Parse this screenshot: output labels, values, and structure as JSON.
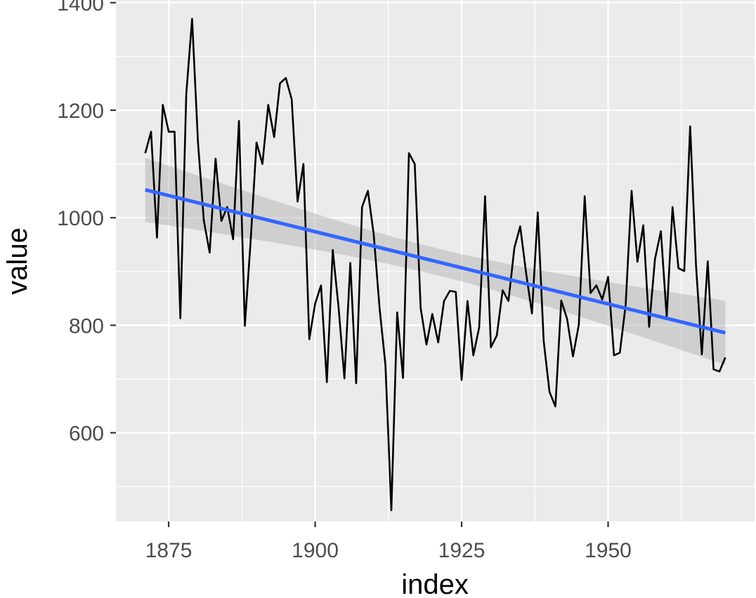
{
  "chart_data": {
    "type": "line",
    "title": "",
    "xlabel": "index",
    "ylabel": "value",
    "xlim": [
      1866,
      1975
    ],
    "ylim": [
      435,
      1405
    ],
    "x_ticks": [
      1875,
      1900,
      1925,
      1950
    ],
    "y_ticks": [
      600,
      800,
      1000,
      1200,
      1400
    ],
    "grid": true,
    "legend": "none",
    "colors": {
      "panel": "#ebebeb",
      "grid": "#ffffff",
      "series": "#000000",
      "trend": "#3366ff",
      "ribbon": "#b3b3b3",
      "tick_text": "#4d4d4d"
    },
    "series": [
      {
        "x": [
          1871,
          1872,
          1873,
          1874,
          1875,
          1876,
          1877,
          1878,
          1879,
          1880,
          1881,
          1882,
          1883,
          1884,
          1885,
          1886,
          1887,
          1888,
          1889,
          1890,
          1891,
          1892,
          1893,
          1894,
          1895,
          1896,
          1897,
          1898,
          1899,
          1900,
          1901,
          1902,
          1903,
          1904,
          1905,
          1906,
          1907,
          1908,
          1909,
          1910,
          1911,
          1912,
          1913,
          1914,
          1915,
          1916,
          1917,
          1918,
          1919,
          1920,
          1921,
          1922,
          1923,
          1924,
          1925,
          1926,
          1927,
          1928,
          1929,
          1930,
          1931,
          1932,
          1933,
          1934,
          1935,
          1936,
          1937,
          1938,
          1939,
          1940,
          1941,
          1942,
          1943,
          1944,
          1945,
          1946,
          1947,
          1948,
          1949,
          1950,
          1951,
          1952,
          1953,
          1954,
          1955,
          1956,
          1957,
          1958,
          1959,
          1960,
          1961,
          1962,
          1963,
          1964,
          1965,
          1966,
          1967,
          1968,
          1969,
          1970
        ],
        "values": [
          1120,
          1160,
          963,
          1210,
          1160,
          1160,
          813,
          1230,
          1370,
          1140,
          995,
          935,
          1110,
          994,
          1020,
          960,
          1180,
          799,
          958,
          1140,
          1100,
          1210,
          1150,
          1250,
          1260,
          1220,
          1030,
          1100,
          774,
          840,
          874,
          694,
          940,
          833,
          701,
          916,
          692,
          1020,
          1050,
          969,
          831,
          726,
          456,
          824,
          702,
          1120,
          1100,
          832,
          764,
          821,
          768,
          845,
          864,
          862,
          698,
          845,
          744,
          796,
          1040,
          759,
          781,
          865,
          845,
          944,
          984,
          897,
          822,
          1010,
          771,
          676,
          649,
          846,
          812,
          742,
          801,
          1040,
          860,
          874,
          848,
          890,
          744,
          749,
          838,
          1050,
          918,
          986,
          797,
          923,
          975,
          815,
          1020,
          906,
          901,
          1170,
          912,
          746,
          919,
          718,
          714,
          740
        ]
      }
    ],
    "trend": {
      "method": "linear fit",
      "start": {
        "x": 1871,
        "y": 1052,
        "lower": 993,
        "upper": 1112
      },
      "end": {
        "x": 1970,
        "y": 786,
        "lower": 727,
        "upper": 845
      }
    }
  }
}
